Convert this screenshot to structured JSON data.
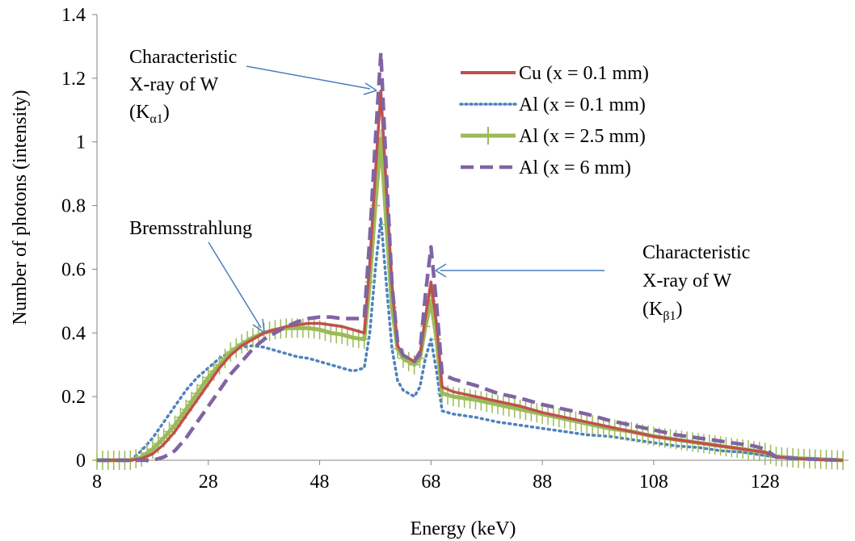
{
  "chart_data": {
    "type": "line",
    "xlabel": "Energy (keV)",
    "ylabel": "Number of photons (intensity)",
    "xlim": [
      8,
      143
    ],
    "ylim": [
      0,
      1.4
    ],
    "x_ticks": [
      "8",
      "28",
      "48",
      "68",
      "88",
      "108",
      "128"
    ],
    "y_ticks": [
      "0",
      "0.2",
      "0.4",
      "0.6",
      "0.8",
      "1",
      "1.2",
      "1.4"
    ],
    "grid": false,
    "legend_position": "top-right",
    "series": [
      {
        "name": "Cu (x = 0.1 mm)",
        "color": "#C0504D",
        "style": "solid",
        "x": [
          8,
          14,
          16,
          18,
          20,
          22,
          24,
          26,
          28,
          30,
          32,
          34,
          36,
          38,
          40,
          42,
          44,
          46,
          48,
          50,
          52,
          54,
          56,
          57,
          58,
          59,
          60,
          61,
          62,
          63,
          64,
          65,
          66,
          67,
          68,
          69,
          70,
          72,
          76,
          80,
          84,
          88,
          92,
          96,
          100,
          104,
          108,
          112,
          116,
          120,
          124,
          126,
          128,
          130,
          134,
          138,
          142
        ],
        "y": [
          0,
          0,
          0.005,
          0.02,
          0.05,
          0.09,
          0.14,
          0.19,
          0.24,
          0.29,
          0.33,
          0.36,
          0.38,
          0.4,
          0.41,
          0.42,
          0.425,
          0.43,
          0.43,
          0.425,
          0.42,
          0.41,
          0.4,
          0.62,
          0.9,
          1.16,
          0.85,
          0.55,
          0.36,
          0.33,
          0.32,
          0.31,
          0.33,
          0.45,
          0.56,
          0.43,
          0.23,
          0.215,
          0.2,
          0.185,
          0.17,
          0.15,
          0.135,
          0.12,
          0.105,
          0.09,
          0.075,
          0.065,
          0.055,
          0.045,
          0.035,
          0.03,
          0.025,
          0.01,
          0.005,
          0.002,
          0
        ]
      },
      {
        "name": "Al (x = 0.1 mm)",
        "color": "#4F81BD",
        "style": "dotted",
        "x": [
          8,
          14,
          16,
          18,
          20,
          22,
          24,
          26,
          28,
          30,
          32,
          34,
          36,
          38,
          40,
          42,
          44,
          46,
          48,
          50,
          52,
          54,
          56,
          57,
          58,
          59,
          60,
          61,
          62,
          63,
          64,
          65,
          66,
          67,
          68,
          69,
          70,
          72,
          76,
          80,
          84,
          88,
          92,
          96,
          100,
          104,
          108,
          112,
          116,
          120,
          124,
          126,
          128,
          130,
          134,
          138,
          142
        ],
        "y": [
          0,
          0,
          0.03,
          0.07,
          0.12,
          0.17,
          0.22,
          0.26,
          0.29,
          0.32,
          0.34,
          0.355,
          0.36,
          0.355,
          0.345,
          0.335,
          0.325,
          0.32,
          0.31,
          0.3,
          0.29,
          0.28,
          0.29,
          0.4,
          0.6,
          0.76,
          0.55,
          0.35,
          0.25,
          0.22,
          0.21,
          0.2,
          0.23,
          0.32,
          0.38,
          0.28,
          0.155,
          0.145,
          0.135,
          0.12,
          0.11,
          0.1,
          0.09,
          0.08,
          0.075,
          0.065,
          0.055,
          0.045,
          0.04,
          0.03,
          0.025,
          0.02,
          0.015,
          0.01,
          0.005,
          0.002,
          0
        ]
      },
      {
        "name": "Al (x = 2.5 mm)",
        "color": "#9BBB59",
        "style": "solid-plus",
        "x": [
          8,
          14,
          16,
          18,
          20,
          22,
          24,
          26,
          28,
          30,
          32,
          34,
          36,
          38,
          40,
          42,
          44,
          46,
          48,
          50,
          52,
          54,
          56,
          57,
          58,
          59,
          60,
          61,
          62,
          63,
          64,
          65,
          66,
          67,
          68,
          69,
          70,
          72,
          76,
          80,
          84,
          88,
          92,
          96,
          100,
          104,
          108,
          112,
          116,
          120,
          124,
          126,
          128,
          130,
          134,
          138,
          142
        ],
        "y": [
          0,
          0,
          0.01,
          0.035,
          0.07,
          0.11,
          0.16,
          0.21,
          0.26,
          0.3,
          0.34,
          0.365,
          0.385,
          0.4,
          0.41,
          0.415,
          0.415,
          0.415,
          0.41,
          0.4,
          0.395,
          0.385,
          0.38,
          0.56,
          0.8,
          1.01,
          0.74,
          0.48,
          0.35,
          0.32,
          0.31,
          0.3,
          0.32,
          0.42,
          0.5,
          0.38,
          0.21,
          0.2,
          0.19,
          0.175,
          0.16,
          0.145,
          0.13,
          0.115,
          0.1,
          0.09,
          0.075,
          0.065,
          0.055,
          0.045,
          0.035,
          0.03,
          0.025,
          0.012,
          0.006,
          0.003,
          0
        ]
      },
      {
        "name": "Al (x = 6 mm)",
        "color": "#8064A2",
        "style": "dashed",
        "x": [
          8,
          14,
          16,
          18,
          20,
          22,
          24,
          26,
          28,
          30,
          32,
          34,
          36,
          38,
          40,
          42,
          44,
          46,
          48,
          50,
          52,
          54,
          56,
          57,
          58,
          59,
          60,
          61,
          62,
          63,
          64,
          65,
          66,
          67,
          68,
          69,
          70,
          72,
          76,
          80,
          84,
          88,
          92,
          96,
          100,
          104,
          108,
          112,
          116,
          120,
          124,
          126,
          128,
          130,
          134,
          138,
          142
        ],
        "y": [
          0,
          0,
          0,
          0,
          0.01,
          0.03,
          0.07,
          0.12,
          0.17,
          0.22,
          0.27,
          0.31,
          0.35,
          0.38,
          0.4,
          0.42,
          0.435,
          0.445,
          0.45,
          0.45,
          0.445,
          0.445,
          0.445,
          0.7,
          1.0,
          1.28,
          0.9,
          0.55,
          0.37,
          0.33,
          0.32,
          0.31,
          0.34,
          0.52,
          0.67,
          0.49,
          0.27,
          0.255,
          0.235,
          0.21,
          0.195,
          0.175,
          0.16,
          0.145,
          0.125,
          0.11,
          0.095,
          0.08,
          0.07,
          0.06,
          0.05,
          0.045,
          0.035,
          0.01,
          0.005,
          0.002,
          0
        ]
      }
    ],
    "annotations": [
      {
        "lines": [
          "Characteristic",
          "X-ray of W",
          "(K",
          "α1",
          ")"
        ]
      },
      {
        "lines": [
          "Bremsstrahlung"
        ]
      },
      {
        "lines": [
          "Characteristic",
          "X-ray of W",
          "(K",
          "β1",
          ")"
        ]
      }
    ]
  }
}
